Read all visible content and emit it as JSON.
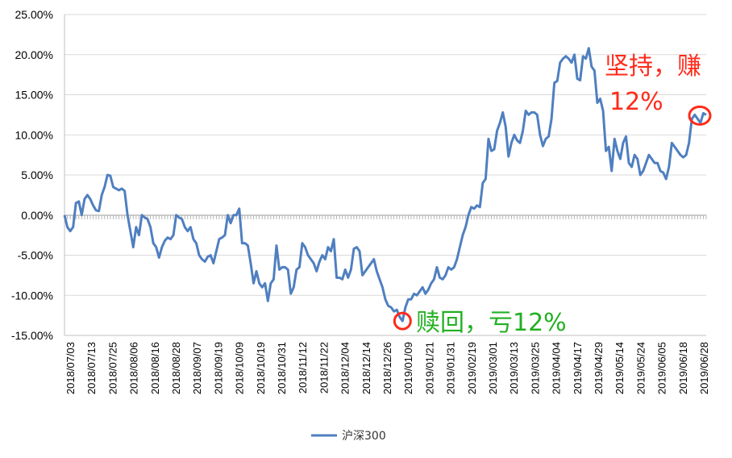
{
  "chart_data": {
    "type": "line",
    "title": "",
    "xlabel": "",
    "ylabel": "",
    "ylim": [
      -15,
      25
    ],
    "y_ticks": [
      "25.00%",
      "20.00%",
      "15.00%",
      "10.00%",
      "5.00%",
      "0.00%",
      "-5.00%",
      "-10.00%",
      "-15.00%"
    ],
    "x_ticks": [
      "2018/07/03",
      "2018/07/13",
      "2018/07/25",
      "2018/08/06",
      "2018/08/16",
      "2018/08/28",
      "2018/09/07",
      "2018/09/19",
      "2018/10/09",
      "2018/10/19",
      "2018/10/31",
      "2018/11/12",
      "2018/11/22",
      "2018/12/04",
      "2018/12/14",
      "2018/12/26",
      "2019/01/09",
      "2019/01/21",
      "2019/01/31",
      "2019/02/19",
      "2019/03/01",
      "2019/03/13",
      "2019/03/25",
      "2019/04/04",
      "2019/04/17",
      "2019/04/29",
      "2019/05/14",
      "2019/05/24",
      "2019/06/05",
      "2019/06/18",
      "2019/06/28"
    ],
    "grid": true,
    "legend": "bottom",
    "colors": {
      "series": "#4f7fc0",
      "annotation_red": "#ff2a1a",
      "annotation_green": "#22b022"
    },
    "series": [
      {
        "name": "沪深300",
        "values": [
          0.0,
          -1.5,
          -2.0,
          -1.5,
          1.5,
          1.7,
          0.0,
          2.0,
          2.5,
          2.0,
          1.2,
          0.6,
          0.5,
          2.5,
          3.5,
          5.0,
          4.9,
          3.5,
          3.3,
          3.1,
          3.3,
          3.0,
          0.0,
          -2.0,
          -4.0,
          -1.5,
          -2.5,
          0.0,
          -0.3,
          -0.5,
          -1.5,
          -3.5,
          -4.0,
          -5.3,
          -4.0,
          -3.2,
          -2.8,
          -3.0,
          -2.5,
          0.0,
          -0.3,
          -0.5,
          -1.5,
          -2.0,
          -1.5,
          -3.0,
          -3.5,
          -5.0,
          -5.5,
          -5.8,
          -5.2,
          -5.0,
          -6.0,
          -4.5,
          -3.0,
          -2.8,
          -2.5,
          0.0,
          -1.0,
          0.0,
          0.0,
          0.8,
          -3.5,
          -3.5,
          -3.8,
          -6.0,
          -8.5,
          -7.0,
          -8.5,
          -9.0,
          -8.5,
          -10.7,
          -8.5,
          -8.0,
          -3.8,
          -6.8,
          -6.5,
          -6.5,
          -6.8,
          -9.8,
          -9.0,
          -6.8,
          -6.5,
          -3.5,
          -4.0,
          -5.0,
          -5.5,
          -6.0,
          -7.0,
          -5.8,
          -5.0,
          -5.5,
          -4.0,
          -4.5,
          -3.0,
          -7.8,
          -7.8,
          -8.0,
          -6.8,
          -7.8,
          -6.8,
          -4.2,
          -4.0,
          -4.5,
          -7.5,
          -7.0,
          -6.5,
          -6.0,
          -5.5,
          -7.0,
          -8.0,
          -9.0,
          -10.5,
          -11.3,
          -11.5,
          -12.0,
          -11.8,
          -12.7,
          -13.2,
          -11.5,
          -10.5,
          -10.5,
          -9.8,
          -10.0,
          -9.5,
          -9.0,
          -9.8,
          -9.3,
          -8.5,
          -8.0,
          -6.5,
          -7.8,
          -8.0,
          -7.5,
          -6.5,
          -6.8,
          -6.5,
          -5.5,
          -4.0,
          -2.5,
          -1.5,
          0.0,
          1.0,
          0.8,
          1.2,
          1.0,
          4.0,
          4.5,
          9.5,
          8.0,
          8.2,
          10.5,
          11.5,
          12.8,
          11.0,
          7.3,
          9.0,
          10.0,
          9.3,
          9.0,
          10.5,
          13.0,
          12.5,
          12.8,
          12.8,
          12.5,
          10.0,
          8.6,
          9.5,
          9.8,
          12.0,
          16.5,
          16.7,
          19.0,
          19.5,
          19.8,
          19.5,
          19.0,
          20.0,
          17.0,
          16.8,
          19.8,
          19.5,
          20.8,
          18.5,
          18.0,
          14.0,
          14.5,
          13.0,
          8.0,
          8.5,
          5.5,
          9.5,
          8.0,
          7.0,
          9.0,
          9.8,
          6.5,
          6.0,
          7.5,
          7.0,
          5.0,
          5.5,
          6.5,
          7.5,
          7.0,
          6.5,
          6.5,
          5.5,
          5.3,
          4.5,
          6.0,
          9.0,
          8.5,
          8.0,
          7.5,
          7.2,
          7.5,
          9.0,
          12.0,
          12.5,
          12.0,
          11.5,
          12.7,
          12.5
        ]
      }
    ]
  },
  "annotations": {
    "buy_label": "赎回，亏12%",
    "hold_label_line1": "坚持，赚",
    "hold_label_line2": "12%"
  }
}
